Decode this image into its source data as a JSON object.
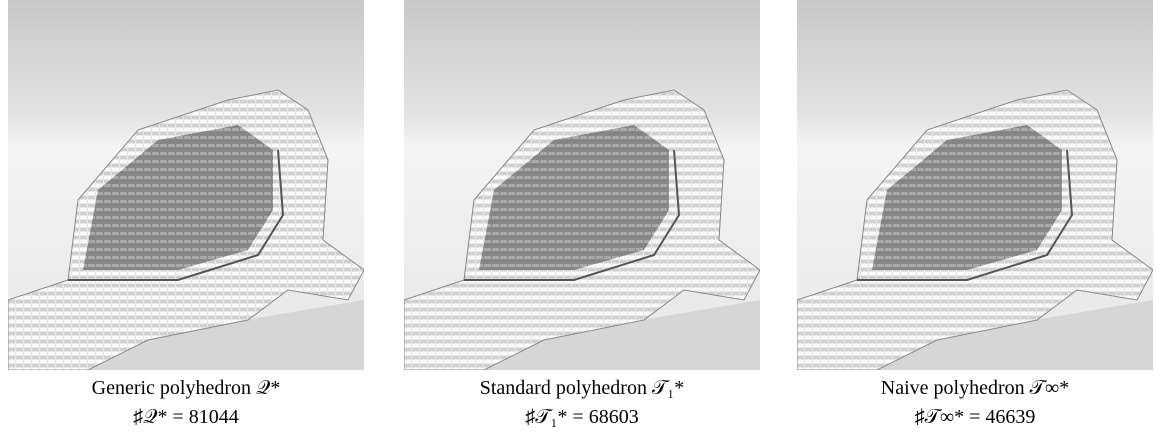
{
  "panels": [
    {
      "caption": "Generic polyhedron 𝒬*",
      "count": "♯𝒬* = 81044"
    },
    {
      "caption": "Standard polyhedron 𝒯₁*",
      "count": "♯𝒯₁* = 68603"
    },
    {
      "caption": "Naive polyhedron 𝒯∞*",
      "count": "♯𝒯∞* = 46639"
    }
  ]
}
